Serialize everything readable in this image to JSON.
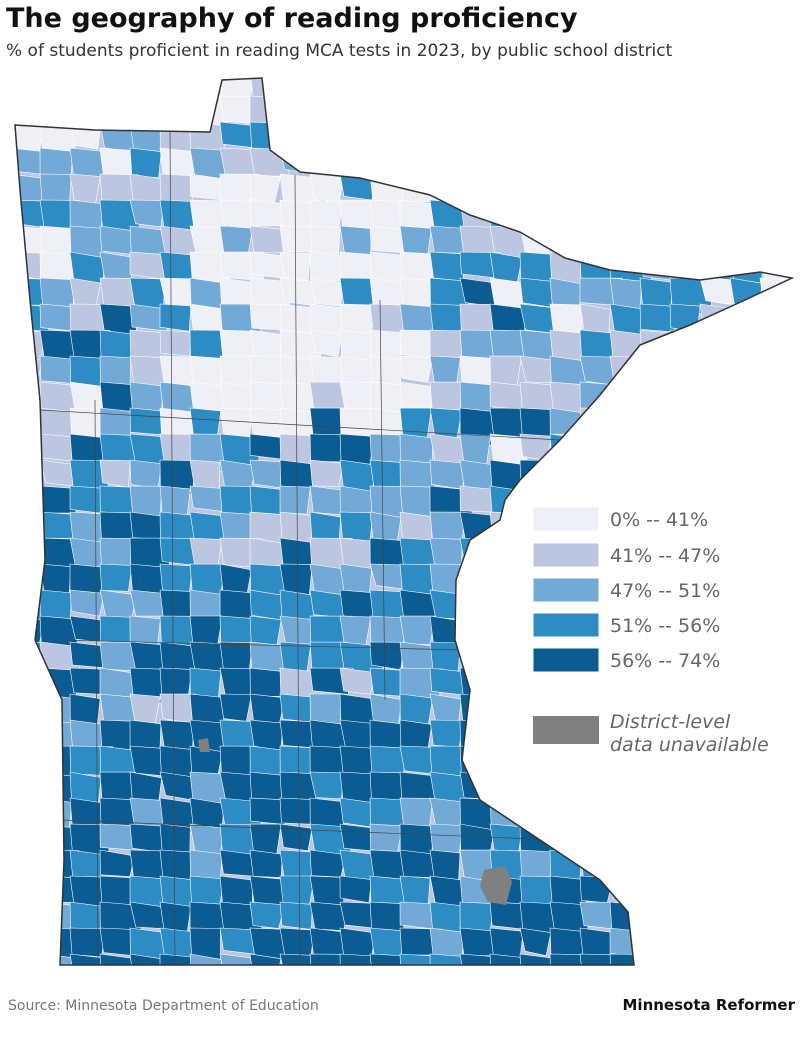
{
  "header": {
    "title": "The geography of reading proficiency",
    "subtitle": "% of students proficient in reading MCA tests in 2023, by public school district"
  },
  "legend": {
    "items": [
      {
        "label": "0% -- 41%",
        "color": "#efeff6"
      },
      {
        "label": "41% -- 47%",
        "color": "#bcc6e0"
      },
      {
        "label": "47% -- 51%",
        "color": "#72a9d6"
      },
      {
        "label": "51% -- 56%",
        "color": "#2e8cc4"
      },
      {
        "label": "56% -- 74%",
        "color": "#0b5c93"
      }
    ],
    "unavailable": {
      "lines": [
        "District-level",
        "data unavailable"
      ],
      "color": "#808080"
    }
  },
  "footer": {
    "source": "Source: Minnesota Department of Education",
    "brand": "Minnesota Reformer"
  }
}
